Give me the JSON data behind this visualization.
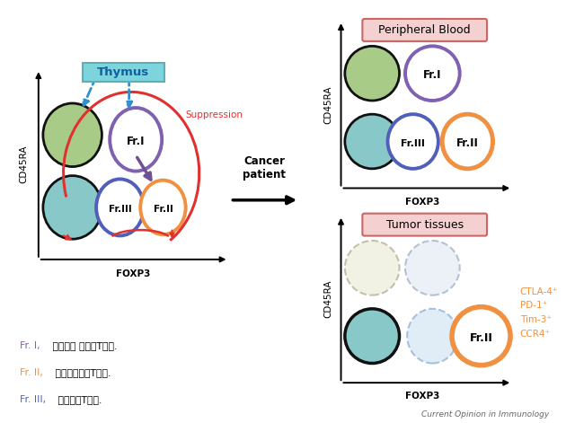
{
  "fig_width": 6.3,
  "fig_height": 4.71,
  "bg_color": "#ffffff",
  "thymus_label": "Thymus",
  "thymus_box_facecolor": "#7dd4dc",
  "thymus_box_edgecolor": "#5ab0b8",
  "peripheral_blood_label": "Peripheral Blood",
  "pb_box_facecolor": "#f5d0d0",
  "pb_box_edgecolor": "#cc6666",
  "tumor_label": "Tumor tissues",
  "tumor_box_facecolor": "#f5d0d0",
  "tumor_box_edgecolor": "#cc6666",
  "cancer_patient_label": "Cancer\npatient",
  "suppression_label": "Suppression",
  "journal_label": "Current Opinion in Immunology",
  "footnote1": "Fr. I, ナイーブ 制御性T細胞.",
  "footnote2": "Fr. II, 活性化制御性T細胞.",
  "footnote3": "Fr. III, 非制御性T細胞.",
  "green_fill": "#a8cc88",
  "teal_fill": "#88c8c8",
  "white_fill": "#ffffff",
  "orange_fill": "#f09040",
  "orange_edge": "#e07020",
  "purple_edge": "#8060b0",
  "indigo_edge": "#5060b8",
  "black_edge": "#111111",
  "red_color": "#e03030",
  "blue_arrow_color": "#3090d0",
  "dark_purple": "#705090"
}
